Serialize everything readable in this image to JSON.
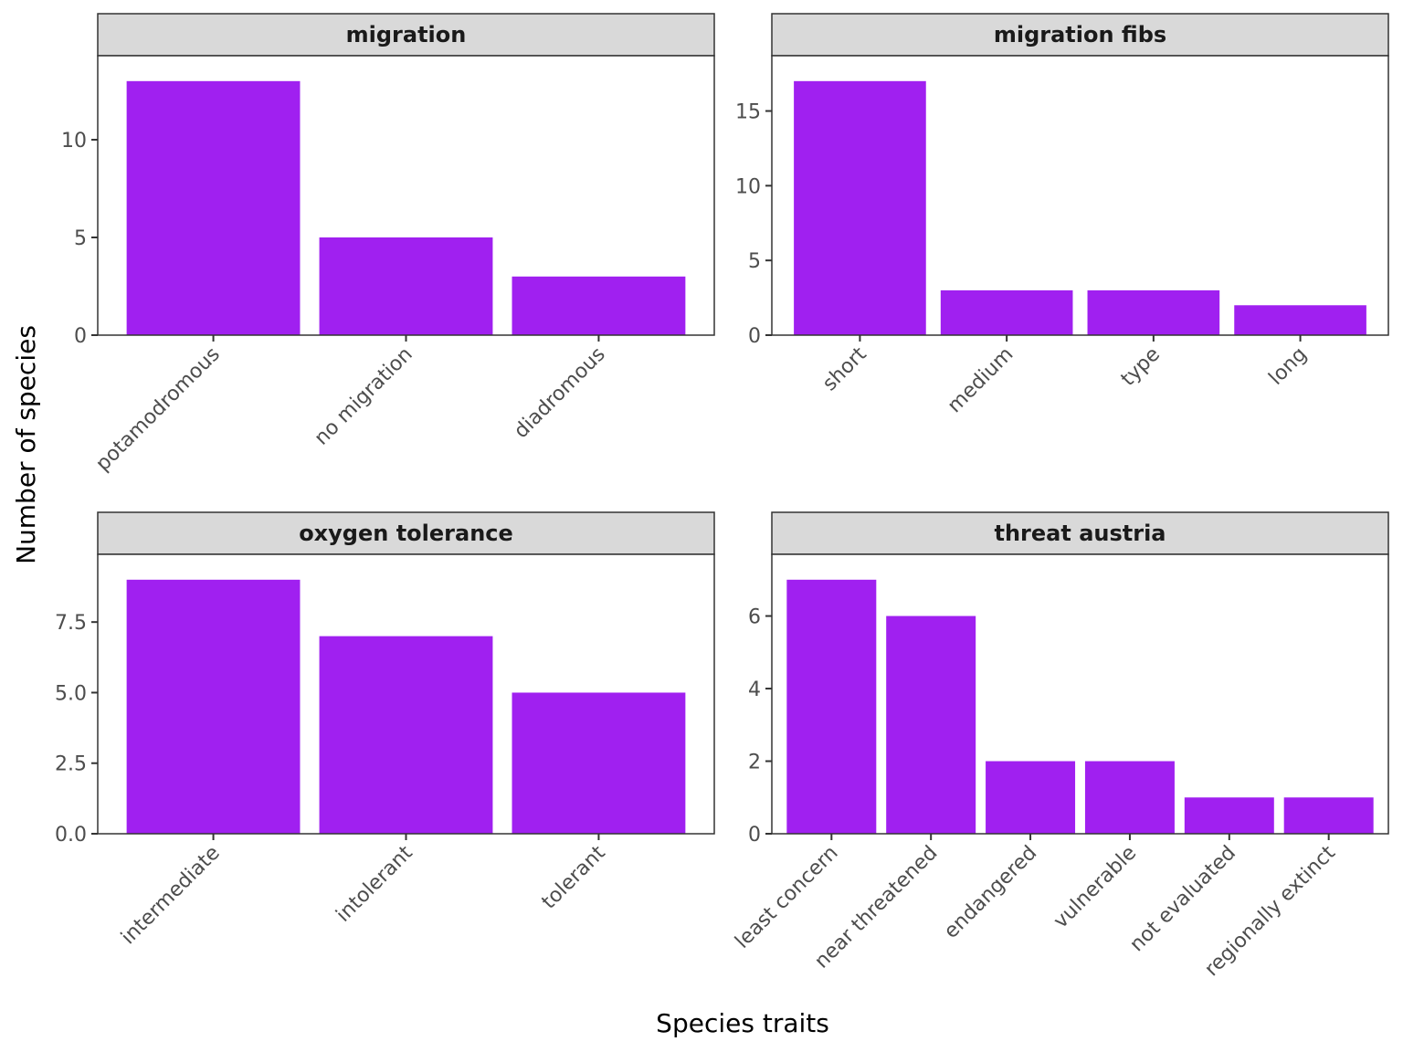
{
  "chart_data": [
    {
      "type": "bar",
      "title": "migration",
      "categories": [
        "potamodromous",
        "no migration",
        "diadromous"
      ],
      "values": [
        13,
        5,
        3
      ],
      "yticks": [
        0,
        5,
        10
      ],
      "ytick_labels": [
        "0",
        "5",
        "10"
      ],
      "ylim": [
        0,
        14.3
      ]
    },
    {
      "type": "bar",
      "title": "migration fibs",
      "categories": [
        "short",
        "medium",
        "type",
        "long"
      ],
      "values": [
        17,
        3,
        3,
        2
      ],
      "yticks": [
        0,
        5,
        10,
        15
      ],
      "ytick_labels": [
        "0",
        "5",
        "10",
        "15"
      ],
      "ylim": [
        0,
        18.7
      ]
    },
    {
      "type": "bar",
      "title": "oxygen tolerance",
      "categories": [
        "intermediate",
        "intolerant",
        "tolerant"
      ],
      "values": [
        9,
        7,
        5
      ],
      "yticks": [
        0,
        2.5,
        5,
        7.5
      ],
      "ytick_labels": [
        "0.0",
        "2.5",
        "5.0",
        "7.5"
      ],
      "ylim": [
        0,
        9.9
      ]
    },
    {
      "type": "bar",
      "title": "threat austria",
      "categories": [
        "least concern",
        "near threatened",
        "endangered",
        "vulnerable",
        "not evaluated",
        "regionally extinct"
      ],
      "values": [
        7,
        6,
        2,
        2,
        1,
        1
      ],
      "yticks": [
        0,
        2,
        4,
        6
      ],
      "ytick_labels": [
        "0",
        "2",
        "4",
        "6"
      ],
      "ylim": [
        0,
        7.7
      ]
    }
  ],
  "xlabel": "Species traits",
  "ylabel": "Number of species",
  "colors": {
    "bar": "#A020F0",
    "strip": "#D9D9D9",
    "border": "#333333"
  }
}
